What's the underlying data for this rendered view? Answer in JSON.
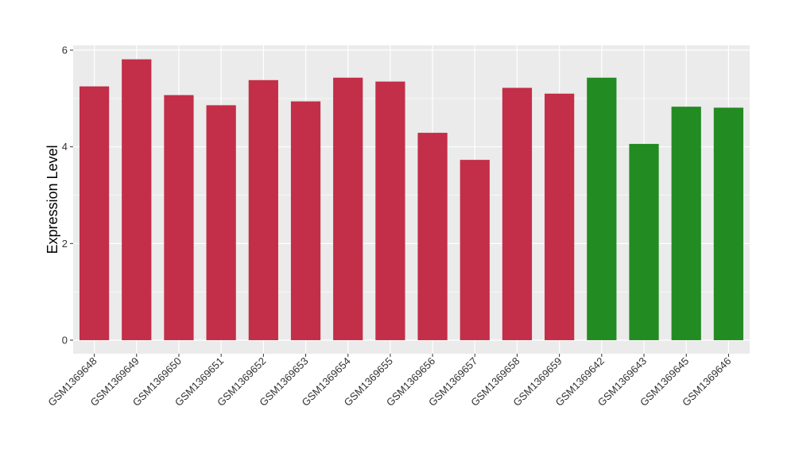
{
  "chart_data": {
    "type": "bar",
    "ylabel": "Expression Level",
    "xlabel": "",
    "ylim": [
      -0.28,
      6.1
    ],
    "y_ticks": [
      0,
      2,
      4,
      6
    ],
    "grid": true,
    "background": "#EBEBEB",
    "gridline_color": "#FFFFFF",
    "categories": [
      "GSM1369648",
      "GSM1369649",
      "GSM1369650",
      "GSM1369651",
      "GSM1369652",
      "GSM1369653",
      "GSM1369654",
      "GSM1369655",
      "GSM1369656",
      "GSM1369657",
      "GSM1369658",
      "GSM1369659",
      "GSM1369642",
      "GSM1369643",
      "GSM1369645",
      "GSM1369646"
    ],
    "values": [
      5.25,
      5.81,
      5.07,
      4.86,
      5.38,
      4.94,
      5.43,
      5.35,
      4.29,
      3.73,
      5.22,
      5.1,
      5.43,
      4.06,
      4.83,
      4.81
    ],
    "bar_colors": [
      "#C32E48",
      "#C32E48",
      "#C32E48",
      "#C32E48",
      "#C32E48",
      "#C32E48",
      "#C32E48",
      "#C32E48",
      "#C32E48",
      "#C32E48",
      "#C32E48",
      "#C32E48",
      "#228B22",
      "#228B22",
      "#228B22",
      "#228B22"
    ]
  }
}
